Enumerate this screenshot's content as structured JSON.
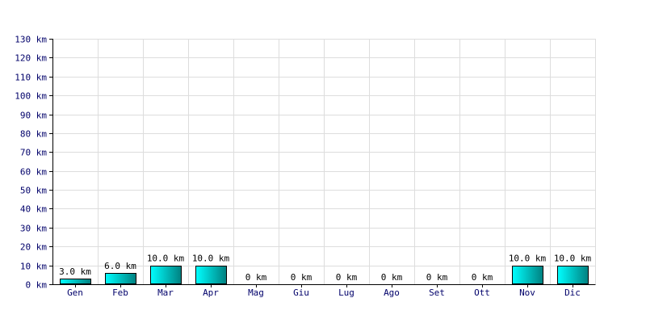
{
  "chart_data": {
    "type": "bar",
    "title": "",
    "xlabel": "",
    "ylabel": "",
    "categories": [
      "Gen",
      "Feb",
      "Mar",
      "Apr",
      "Mag",
      "Giu",
      "Lug",
      "Ago",
      "Set",
      "Ott",
      "Nov",
      "Dic"
    ],
    "values": [
      3.0,
      6.0,
      10.0,
      10.0,
      0,
      0,
      0,
      0,
      0,
      0,
      10.0,
      10.0
    ],
    "data_labels": [
      "3.0 km",
      "6.0 km",
      "10.0 km",
      "10.0 km",
      "0 km",
      "0 km",
      "0 km",
      "0 km",
      "0 km",
      "0 km",
      "10.0 km",
      "10.0 km"
    ],
    "y_tick_labels": [
      "0 km",
      "10 km",
      "20 km",
      "30 km",
      "40 km",
      "50 km",
      "60 km",
      "70 km",
      "80 km",
      "90 km",
      "100 km",
      "110 km",
      "120 km",
      "130 km"
    ],
    "ylim": [
      0,
      130
    ],
    "y_tick_step": 10,
    "grid": true,
    "legend": "none",
    "colors": {
      "bar_light": "#00ffff",
      "bar_dark": "#008080",
      "bar_border": "#000000",
      "grid": "#dddddd",
      "axis": "#000000",
      "tick_text": "#00006a"
    }
  }
}
